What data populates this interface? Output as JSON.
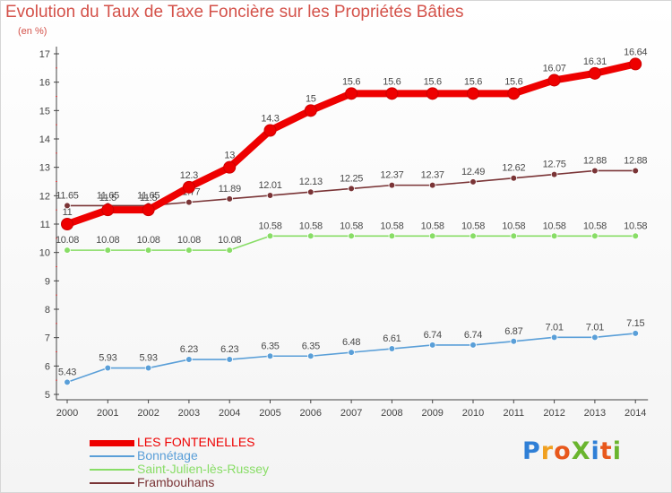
{
  "header": {
    "title": "Evolution du Taux de Taxe Foncière sur les Propriétés Bâties",
    "unit": "(en %)"
  },
  "logo": {
    "text": "ProXiti",
    "letters": [
      "P",
      "r",
      "o",
      "X",
      "i",
      "t",
      "i"
    ],
    "colors": [
      "#2f7fd6",
      "#f0a020",
      "#e8581c",
      "#6ab52e",
      "#2f7fd6",
      "#e8581c",
      "#6ab52e"
    ]
  },
  "chart_data": {
    "type": "line",
    "title": "Evolution du Taux de Taxe Foncière sur les Propriétés Bâties",
    "ylabel": "(en %)",
    "xlabel": "",
    "x": [
      "2000",
      "2001",
      "2002",
      "2003",
      "2004",
      "2005",
      "2006",
      "2007",
      "2008",
      "2009",
      "2010",
      "2011",
      "2012",
      "2013",
      "2014"
    ],
    "ylim": [
      5,
      17
    ],
    "yticks": [
      "5",
      "6",
      "7",
      "8",
      "9",
      "10",
      "11",
      "12",
      "13",
      "14",
      "15",
      "16",
      "17"
    ],
    "series": [
      {
        "name": "LES FONTENELLES",
        "color": "#ee0000",
        "values": [
          11,
          11.5,
          11.5,
          12.3,
          13,
          14.3,
          15,
          15.6,
          15.6,
          15.6,
          15.6,
          15.6,
          16.07,
          16.31,
          16.64
        ],
        "labels": [
          "11",
          "11.5",
          "11.5",
          "12.3",
          "13",
          "14.3",
          "15",
          "15.6",
          "15.6",
          "15.6",
          "15.6",
          "15.6",
          "16.07",
          "16.31",
          "16.64"
        ]
      },
      {
        "name": "Bonnétage",
        "color": "#5a9fd8",
        "values": [
          5.43,
          5.93,
          5.93,
          6.23,
          6.23,
          6.35,
          6.35,
          6.48,
          6.61,
          6.74,
          6.74,
          6.87,
          7.01,
          7.01,
          7.15
        ],
        "labels": [
          "5.43",
          "5.93",
          "5.93",
          "6.23",
          "6.23",
          "6.35",
          "6.35",
          "6.48",
          "6.61",
          "6.74",
          "6.74",
          "6.87",
          "7.01",
          "7.01",
          "7.15"
        ]
      },
      {
        "name": "Saint-Julien-lès-Russey",
        "color": "#88dd66",
        "values": [
          10.08,
          10.08,
          10.08,
          10.08,
          10.08,
          10.58,
          10.58,
          10.58,
          10.58,
          10.58,
          10.58,
          10.58,
          10.58,
          10.58,
          10.58
        ],
        "labels": [
          "10.08",
          "10.08",
          "10.08",
          "10.08",
          "10.08",
          "10.58",
          "10.58",
          "10.58",
          "10.58",
          "10.58",
          "10.58",
          "10.58",
          "10.58",
          "10.58",
          "10.58"
        ]
      },
      {
        "name": "Frambouhans",
        "color": "#7a3436",
        "values": [
          11.65,
          11.65,
          11.65,
          11.77,
          11.89,
          12.01,
          12.13,
          12.25,
          12.37,
          12.37,
          12.49,
          12.62,
          12.75,
          12.88,
          12.88
        ],
        "labels": [
          "11.65",
          "11.65",
          "11.65",
          "11.77",
          "11.89",
          "12.01",
          "12.13",
          "12.25",
          "12.37",
          "12.37",
          "12.49",
          "12.62",
          "12.75",
          "12.88",
          "12.88"
        ]
      }
    ],
    "legend": {
      "position": "bottom-left"
    },
    "grid": false
  }
}
